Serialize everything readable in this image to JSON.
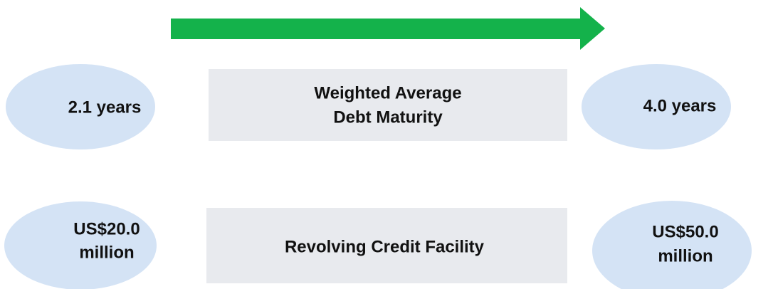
{
  "rows": [
    {
      "left": [
        "2.1 years"
      ],
      "label": [
        "Weighted Average",
        "Debt Maturity"
      ],
      "right": [
        "4.0 years"
      ]
    },
    {
      "left": [
        "US$20.0",
        "million"
      ],
      "label": [
        "Revolving Credit Facility"
      ],
      "right": [
        "US$50.0",
        "million"
      ]
    }
  ]
}
